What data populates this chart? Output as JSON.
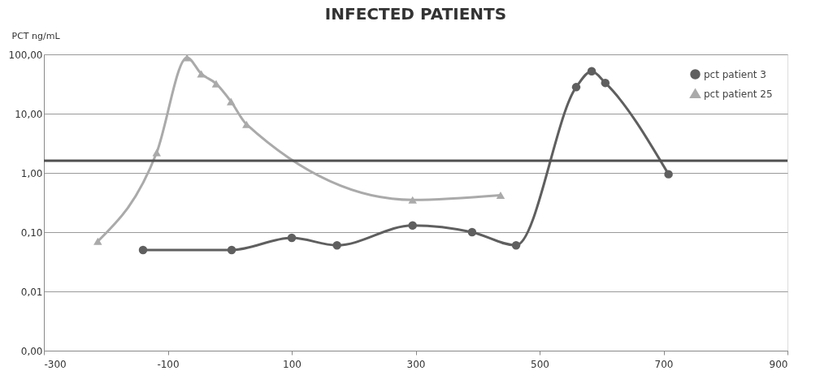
{
  "chart_data": {
    "type": "line",
    "title": "INFECTED PATIENTS",
    "ylabel": "PCT ng/mL",
    "log": "y",
    "grid": "y",
    "legend": "top right",
    "line_style": "solid",
    "xlim": [
      -300,
      900
    ],
    "xticks": [
      -300,
      -100,
      100,
      300,
      500,
      700,
      900
    ],
    "ylim": [
      0.001,
      100
    ],
    "yticks": [
      {
        "value": 0.001,
        "label": "0,00"
      },
      {
        "value": 0.01,
        "label": "0,01"
      },
      {
        "value": 0.1,
        "label": "0,10"
      },
      {
        "value": 1,
        "label": "1,00"
      },
      {
        "value": 10,
        "label": "10,00"
      },
      {
        "value": 100,
        "label": "100,00"
      }
    ],
    "series": [
      {
        "name": "pct patient 3",
        "color": "#5f5f5f",
        "marker": "circle",
        "x": [
          -140,
          3,
          100,
          173,
          295,
          391,
          462,
          559,
          584,
          606,
          708
        ],
        "values": [
          0.05,
          0.05,
          0.08,
          0.06,
          0.13,
          0.1,
          0.06,
          28,
          52,
          33,
          0.95
        ]
      },
      {
        "name": "pct patient 25",
        "color": "#aaaaaa",
        "marker": "triangle",
        "x": [
          -213,
          -118,
          -69,
          -46,
          -22,
          2,
          27,
          295,
          437
        ],
        "values": [
          0.07,
          2.2,
          88,
          47,
          32,
          16,
          6.6,
          0.35,
          0.42
        ]
      }
    ],
    "ref_lines": [
      {
        "axis": "y",
        "value": 1.6,
        "color": "#505050",
        "line_style": "solid"
      }
    ]
  }
}
